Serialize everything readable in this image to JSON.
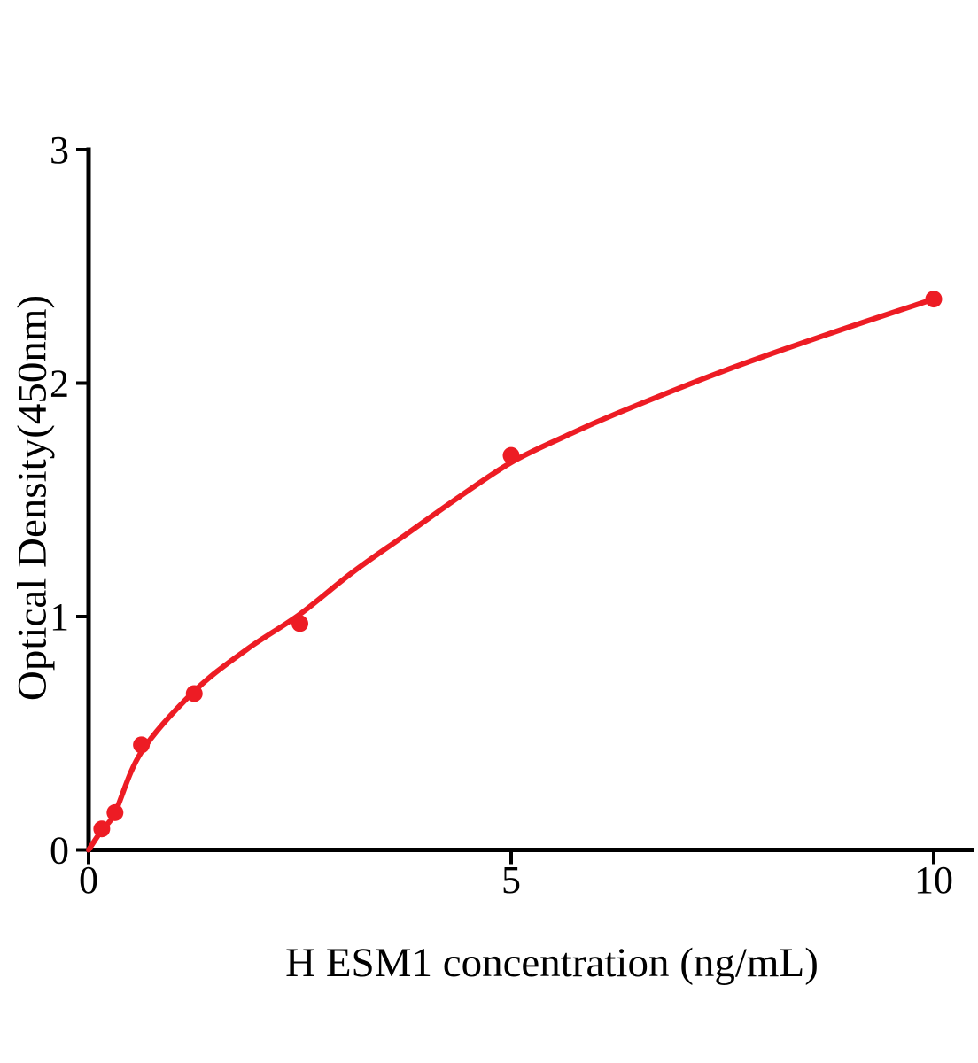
{
  "figure": {
    "background": "#ffffff",
    "description": "ELISA standard curve plot, red fitted curve with red circular data points on black axes"
  },
  "chart_data": {
    "type": "scatter",
    "title": "",
    "xlabel": "H ESM1 concentration (ng/mL)",
    "ylabel": "Optical Density(450nm)",
    "x_ticks": [
      0,
      5,
      10
    ],
    "y_ticks": [
      0,
      1,
      2,
      3
    ],
    "xlim": [
      0,
      10.5
    ],
    "ylim": [
      0,
      3
    ],
    "grid": false,
    "legend": false,
    "points": [
      {
        "x": 0.156,
        "od": 0.09
      },
      {
        "x": 0.3125,
        "od": 0.16
      },
      {
        "x": 0.625,
        "od": 0.45
      },
      {
        "x": 1.25,
        "od": 0.67
      },
      {
        "x": 2.5,
        "od": 0.97
      },
      {
        "x": 5,
        "od": 1.69
      },
      {
        "x": 10,
        "od": 2.36
      }
    ],
    "fit_curve": [
      {
        "x": 0,
        "od": 0
      },
      {
        "x": 0.156,
        "od": 0.085
      },
      {
        "x": 0.3125,
        "od": 0.16
      },
      {
        "x": 0.625,
        "od": 0.42
      },
      {
        "x": 1.25,
        "od": 0.68
      },
      {
        "x": 1.875,
        "od": 0.86
      },
      {
        "x": 2.5,
        "od": 1.01
      },
      {
        "x": 3.125,
        "od": 1.19
      },
      {
        "x": 3.75,
        "od": 1.35
      },
      {
        "x": 4.375,
        "od": 1.51
      },
      {
        "x": 5,
        "od": 1.66
      },
      {
        "x": 5.625,
        "od": 1.77
      },
      {
        "x": 6.25,
        "od": 1.87
      },
      {
        "x": 7.5,
        "od": 2.05
      },
      {
        "x": 8.75,
        "od": 2.21
      },
      {
        "x": 10,
        "od": 2.36
      }
    ],
    "colors": {
      "series": "#ed1c24",
      "axis": "#000000"
    }
  }
}
